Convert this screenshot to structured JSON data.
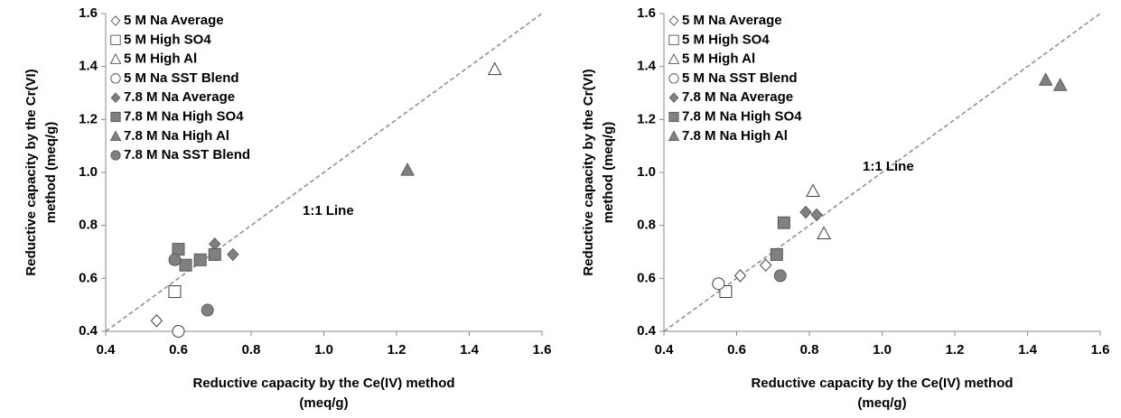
{
  "chart_data": [
    {
      "type": "scatter",
      "x_label": [
        "Reductive capacity by the Ce(IV) method",
        "(meq/g)"
      ],
      "y_label": [
        "Reductive capacity by the Cr(VI)",
        "method (meq/g)"
      ],
      "annotation": "1:1 Line",
      "xlim": [
        0.4,
        1.6
      ],
      "ylim": [
        0.4,
        1.6
      ],
      "xticks": [
        0.4,
        0.6,
        0.8,
        {
          "value": 1.0,
          "label": "1.0"
        },
        1.2,
        1.4,
        1.6
      ],
      "yticks": [
        0.4,
        0.6,
        0.8,
        {
          "value": 1.0,
          "label": "1.0"
        },
        1.2,
        1.4,
        1.6
      ],
      "legend": "upper left",
      "series": [
        {
          "name": "5 M Na Average",
          "marker": "diamond",
          "color": "#ffffff",
          "x": [
            0.54
          ],
          "values": [
            0.44
          ]
        },
        {
          "name": "5 M High SO4",
          "marker": "square",
          "color": "#ffffff",
          "x": [
            0.59
          ],
          "values": [
            0.55
          ]
        },
        {
          "name": "5 M High Al",
          "marker": "triangle",
          "color": "#ffffff",
          "x": [
            1.47
          ],
          "values": [
            1.39
          ]
        },
        {
          "name": "5 M Na SST Blend",
          "marker": "circle",
          "color": "#ffffff",
          "x": [
            0.6
          ],
          "values": [
            0.4
          ]
        },
        {
          "name": "7.8 M Na Average",
          "marker": "diamond",
          "color": "#808080",
          "x": [
            0.7,
            0.75
          ],
          "values": [
            0.73,
            0.69
          ]
        },
        {
          "name": "7.8 M Na High SO4",
          "marker": "square",
          "color": "#808080",
          "x": [
            0.6,
            0.62,
            0.66,
            0.7
          ],
          "values": [
            0.71,
            0.65,
            0.67,
            0.69
          ]
        },
        {
          "name": "7.8 M Na High Al",
          "marker": "triangle",
          "color": "#808080",
          "x": [
            1.23
          ],
          "values": [
            1.01
          ]
        },
        {
          "name": "7.8 M Na SST Blend",
          "marker": "circle",
          "color": "#808080",
          "x": [
            0.59,
            0.68
          ],
          "values": [
            0.67,
            0.48
          ]
        }
      ]
    },
    {
      "type": "scatter",
      "x_label": [
        "Reductive capacity by the Ce(IV) method",
        "(meq/g)"
      ],
      "y_label": [
        "Reductive capacity by the Cr(VI)",
        "method (meq/g)"
      ],
      "annotation": "1:1 Line",
      "xlim": [
        0.4,
        1.6
      ],
      "ylim": [
        0.4,
        1.6
      ],
      "xticks": [
        0.4,
        0.6,
        0.8,
        {
          "value": 1.0,
          "label": "1.0"
        },
        1.2,
        1.4,
        1.6
      ],
      "yticks": [
        0.4,
        0.6,
        0.8,
        {
          "value": 1.0,
          "label": "1.0"
        },
        1.2,
        1.4,
        1.6
      ],
      "legend": "upper left",
      "series": [
        {
          "name": "5 M Na Average",
          "marker": "diamond",
          "color": "#ffffff",
          "x": [
            0.61,
            0.68
          ],
          "values": [
            0.61,
            0.65
          ]
        },
        {
          "name": "5 M High SO4",
          "marker": "square",
          "color": "#ffffff",
          "x": [
            0.57
          ],
          "values": [
            0.55
          ]
        },
        {
          "name": "5 M High Al",
          "marker": "triangle",
          "color": "#ffffff",
          "x": [
            0.81,
            0.84
          ],
          "values": [
            0.93,
            0.77
          ]
        },
        {
          "name": "5 M Na SST Blend",
          "marker": "circle",
          "color": "#ffffff",
          "x": [
            0.55
          ],
          "values": [
            0.58
          ]
        },
        {
          "name": "7.8 M Na Average",
          "marker": "diamond",
          "color": "#808080",
          "x": [
            0.79,
            0.82
          ],
          "values": [
            0.85,
            0.84
          ]
        },
        {
          "name": "7.8 M Na High SO4",
          "marker": "square",
          "color": "#808080",
          "x": [
            0.73,
            0.71
          ],
          "values": [
            0.81,
            0.69
          ]
        },
        {
          "name": "7.8 M Na High Al",
          "marker": "triangle",
          "color": "#808080",
          "x": [
            1.45,
            1.49
          ],
          "values": [
            1.35,
            1.33
          ]
        },
        {
          "name": "7.8 M Na SST Blend",
          "marker": "circle",
          "color": "#808080",
          "in_legend": false,
          "x": [
            0.72
          ],
          "values": [
            0.61
          ]
        }
      ]
    }
  ]
}
